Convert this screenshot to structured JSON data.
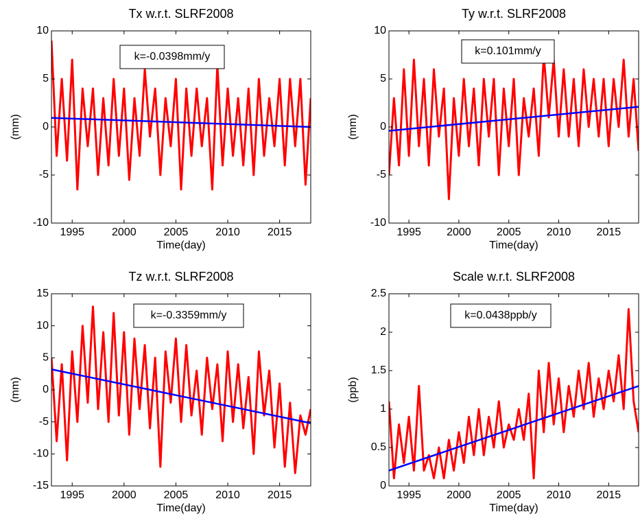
{
  "chart_data": [
    {
      "type": "line",
      "title": "Tx w.r.t. SLRF2008",
      "xlabel": "Time(day)",
      "ylabel": "(mm)",
      "annotation": "k=-0.0398mm/y",
      "x": [
        1993,
        1993.5,
        1994,
        1994.5,
        1995,
        1995.5,
        1996,
        1996.5,
        1997,
        1997.5,
        1998,
        1998.5,
        1999,
        1999.5,
        2000,
        2000.5,
        2001,
        2001.5,
        2002,
        2002.5,
        2003,
        2003.5,
        2004,
        2004.5,
        2005,
        2005.5,
        2006,
        2006.5,
        2007,
        2007.5,
        2008,
        2008.5,
        2009,
        2009.5,
        2010,
        2010.5,
        2011,
        2011.5,
        2012,
        2012.5,
        2013,
        2013.5,
        2014,
        2014.5,
        2015,
        2015.5,
        2016,
        2016.5,
        2017,
        2017.5,
        2018
      ],
      "xlim": [
        1993,
        2018
      ],
      "xticks": [
        1995,
        2000,
        2005,
        2010,
        2015
      ],
      "ylim": [
        -10,
        10
      ],
      "yticks": [
        -10,
        -5,
        0,
        5,
        10
      ],
      "series": [
        {
          "color": "#ff0000",
          "values": [
            9,
            -3,
            5,
            -3.5,
            7,
            -6.5,
            4,
            -2,
            4,
            -5,
            3,
            -4,
            5,
            -3,
            4,
            -5.5,
            3,
            -3,
            6,
            -1,
            4,
            -5,
            3,
            -2,
            5,
            -6.5,
            4,
            -3,
            4,
            -2,
            3,
            -6.5,
            6.5,
            -4,
            4,
            -3,
            3,
            -4,
            4,
            -5,
            5,
            -3,
            3,
            -2,
            5,
            -4,
            5,
            -2,
            5,
            -6,
            3
          ]
        },
        {
          "color": "#0000ff",
          "x": [
            1993,
            2018
          ],
          "values": [
            0.95,
            0.0
          ]
        }
      ]
    },
    {
      "type": "line",
      "title": "Ty w.r.t. SLRF2008",
      "xlabel": "Time(day)",
      "ylabel": "(mm)",
      "annotation": "k=0.101mm/y",
      "x": [
        1993,
        1993.5,
        1994,
        1994.5,
        1995,
        1995.5,
        1996,
        1996.5,
        1997,
        1997.5,
        1998,
        1998.5,
        1999,
        1999.5,
        2000,
        2000.5,
        2001,
        2001.5,
        2002,
        2002.5,
        2003,
        2003.5,
        2004,
        2004.5,
        2005,
        2005.5,
        2006,
        2006.5,
        2007,
        2007.5,
        2008,
        2008.5,
        2009,
        2009.5,
        2010,
        2010.5,
        2011,
        2011.5,
        2012,
        2012.5,
        2013,
        2013.5,
        2014,
        2014.5,
        2015,
        2015.5,
        2016,
        2016.5,
        2017,
        2017.5,
        2018
      ],
      "xlim": [
        1993,
        2018
      ],
      "xticks": [
        1995,
        2000,
        2005,
        2010,
        2015
      ],
      "ylim": [
        -10,
        10
      ],
      "yticks": [
        -10,
        -5,
        0,
        5,
        10
      ],
      "series": [
        {
          "color": "#ff0000",
          "values": [
            -5,
            3,
            -4,
            6,
            -3,
            7,
            -2,
            5,
            -4,
            6,
            -1,
            4,
            -7.5,
            3,
            -3,
            5,
            -2,
            4,
            -4,
            5,
            -1,
            5,
            -5,
            4,
            -2,
            5,
            -5,
            3,
            -1,
            4,
            -3,
            7.5,
            1,
            7,
            -1,
            6,
            -1,
            5,
            -2,
            6,
            0,
            5,
            -1,
            5,
            -2,
            5,
            0,
            7,
            -1,
            5,
            -2.5
          ]
        },
        {
          "color": "#0000ff",
          "x": [
            1993,
            2018
          ],
          "values": [
            -0.4,
            2.1
          ]
        }
      ]
    },
    {
      "type": "line",
      "title": "Tz w.r.t. SLRF2008",
      "xlabel": "Time(day)",
      "ylabel": "(mm)",
      "annotation": "k=-0.3359mm/y",
      "x": [
        1993,
        1993.5,
        1994,
        1994.5,
        1995,
        1995.5,
        1996,
        1996.5,
        1997,
        1997.5,
        1998,
        1998.5,
        1999,
        1999.5,
        2000,
        2000.5,
        2001,
        2001.5,
        2002,
        2002.5,
        2003,
        2003.5,
        2004,
        2004.5,
        2005,
        2005.5,
        2006,
        2006.5,
        2007,
        2007.5,
        2008,
        2008.5,
        2009,
        2009.5,
        2010,
        2010.5,
        2011,
        2011.5,
        2012,
        2012.5,
        2013,
        2013.5,
        2014,
        2014.5,
        2015,
        2015.5,
        2016,
        2016.5,
        2017,
        2017.5,
        2018
      ],
      "xlim": [
        1993,
        2018
      ],
      "xticks": [
        1995,
        2000,
        2005,
        2010,
        2015
      ],
      "ylim": [
        -15,
        15
      ],
      "yticks": [
        -15,
        -10,
        -5,
        0,
        5,
        10,
        15
      ],
      "series": [
        {
          "color": "#ff0000",
          "values": [
            5,
            -8,
            4,
            -11,
            6,
            -5,
            10,
            -2,
            13,
            -3,
            9,
            -5,
            12,
            -4,
            9,
            -7,
            8,
            -3,
            7,
            -6,
            5,
            -12,
            6,
            -2,
            8,
            -5,
            7,
            -4,
            3,
            -7,
            5,
            -3,
            4,
            -8,
            6,
            -5,
            4,
            -6,
            2,
            -10,
            6,
            -4,
            3,
            -9,
            1,
            -12,
            -2,
            -13,
            -4,
            -7,
            -3
          ]
        },
        {
          "color": "#0000ff",
          "x": [
            1993,
            2018
          ],
          "values": [
            3.2,
            -5.2
          ]
        }
      ]
    },
    {
      "type": "line",
      "title": "Scale w.r.t. SLRF2008",
      "xlabel": "Time(day)",
      "ylabel": "(ppb)",
      "annotation": "k=0.0438ppb/y",
      "x": [
        1993,
        1993.5,
        1994,
        1994.5,
        1995,
        1995.5,
        1996,
        1996.5,
        1997,
        1997.5,
        1998,
        1998.5,
        1999,
        1999.5,
        2000,
        2000.5,
        2001,
        2001.5,
        2002,
        2002.5,
        2003,
        2003.5,
        2004,
        2004.5,
        2005,
        2005.5,
        2006,
        2006.5,
        2007,
        2007.5,
        2008,
        2008.5,
        2009,
        2009.5,
        2010,
        2010.5,
        2011,
        2011.5,
        2012,
        2012.5,
        2013,
        2013.5,
        2014,
        2014.5,
        2015,
        2015.5,
        2016,
        2016.5,
        2017,
        2017.5,
        2018
      ],
      "xlim": [
        1993,
        2018
      ],
      "xticks": [
        1995,
        2000,
        2005,
        2010,
        2015
      ],
      "ylim": [
        0,
        2.5
      ],
      "yticks": [
        0,
        0.5,
        1,
        1.5,
        2,
        2.5
      ],
      "series": [
        {
          "color": "#ff0000",
          "values": [
            1.1,
            0.1,
            0.8,
            0.3,
            0.9,
            0.2,
            1.3,
            0.2,
            0.4,
            0.1,
            0.5,
            0.1,
            0.6,
            0.2,
            0.7,
            0.3,
            0.9,
            0.4,
            1.0,
            0.4,
            0.9,
            0.5,
            1.1,
            0.5,
            0.8,
            0.6,
            1.0,
            0.6,
            1.2,
            0.1,
            1.5,
            0.7,
            1.6,
            0.8,
            1.4,
            0.7,
            1.3,
            0.9,
            1.5,
            1.0,
            1.6,
            0.9,
            1.4,
            1.0,
            1.5,
            1.1,
            1.7,
            1.0,
            2.3,
            1.1,
            0.7
          ]
        },
        {
          "color": "#0000ff",
          "x": [
            1993,
            2018
          ],
          "values": [
            0.2,
            1.3
          ]
        }
      ]
    }
  ]
}
